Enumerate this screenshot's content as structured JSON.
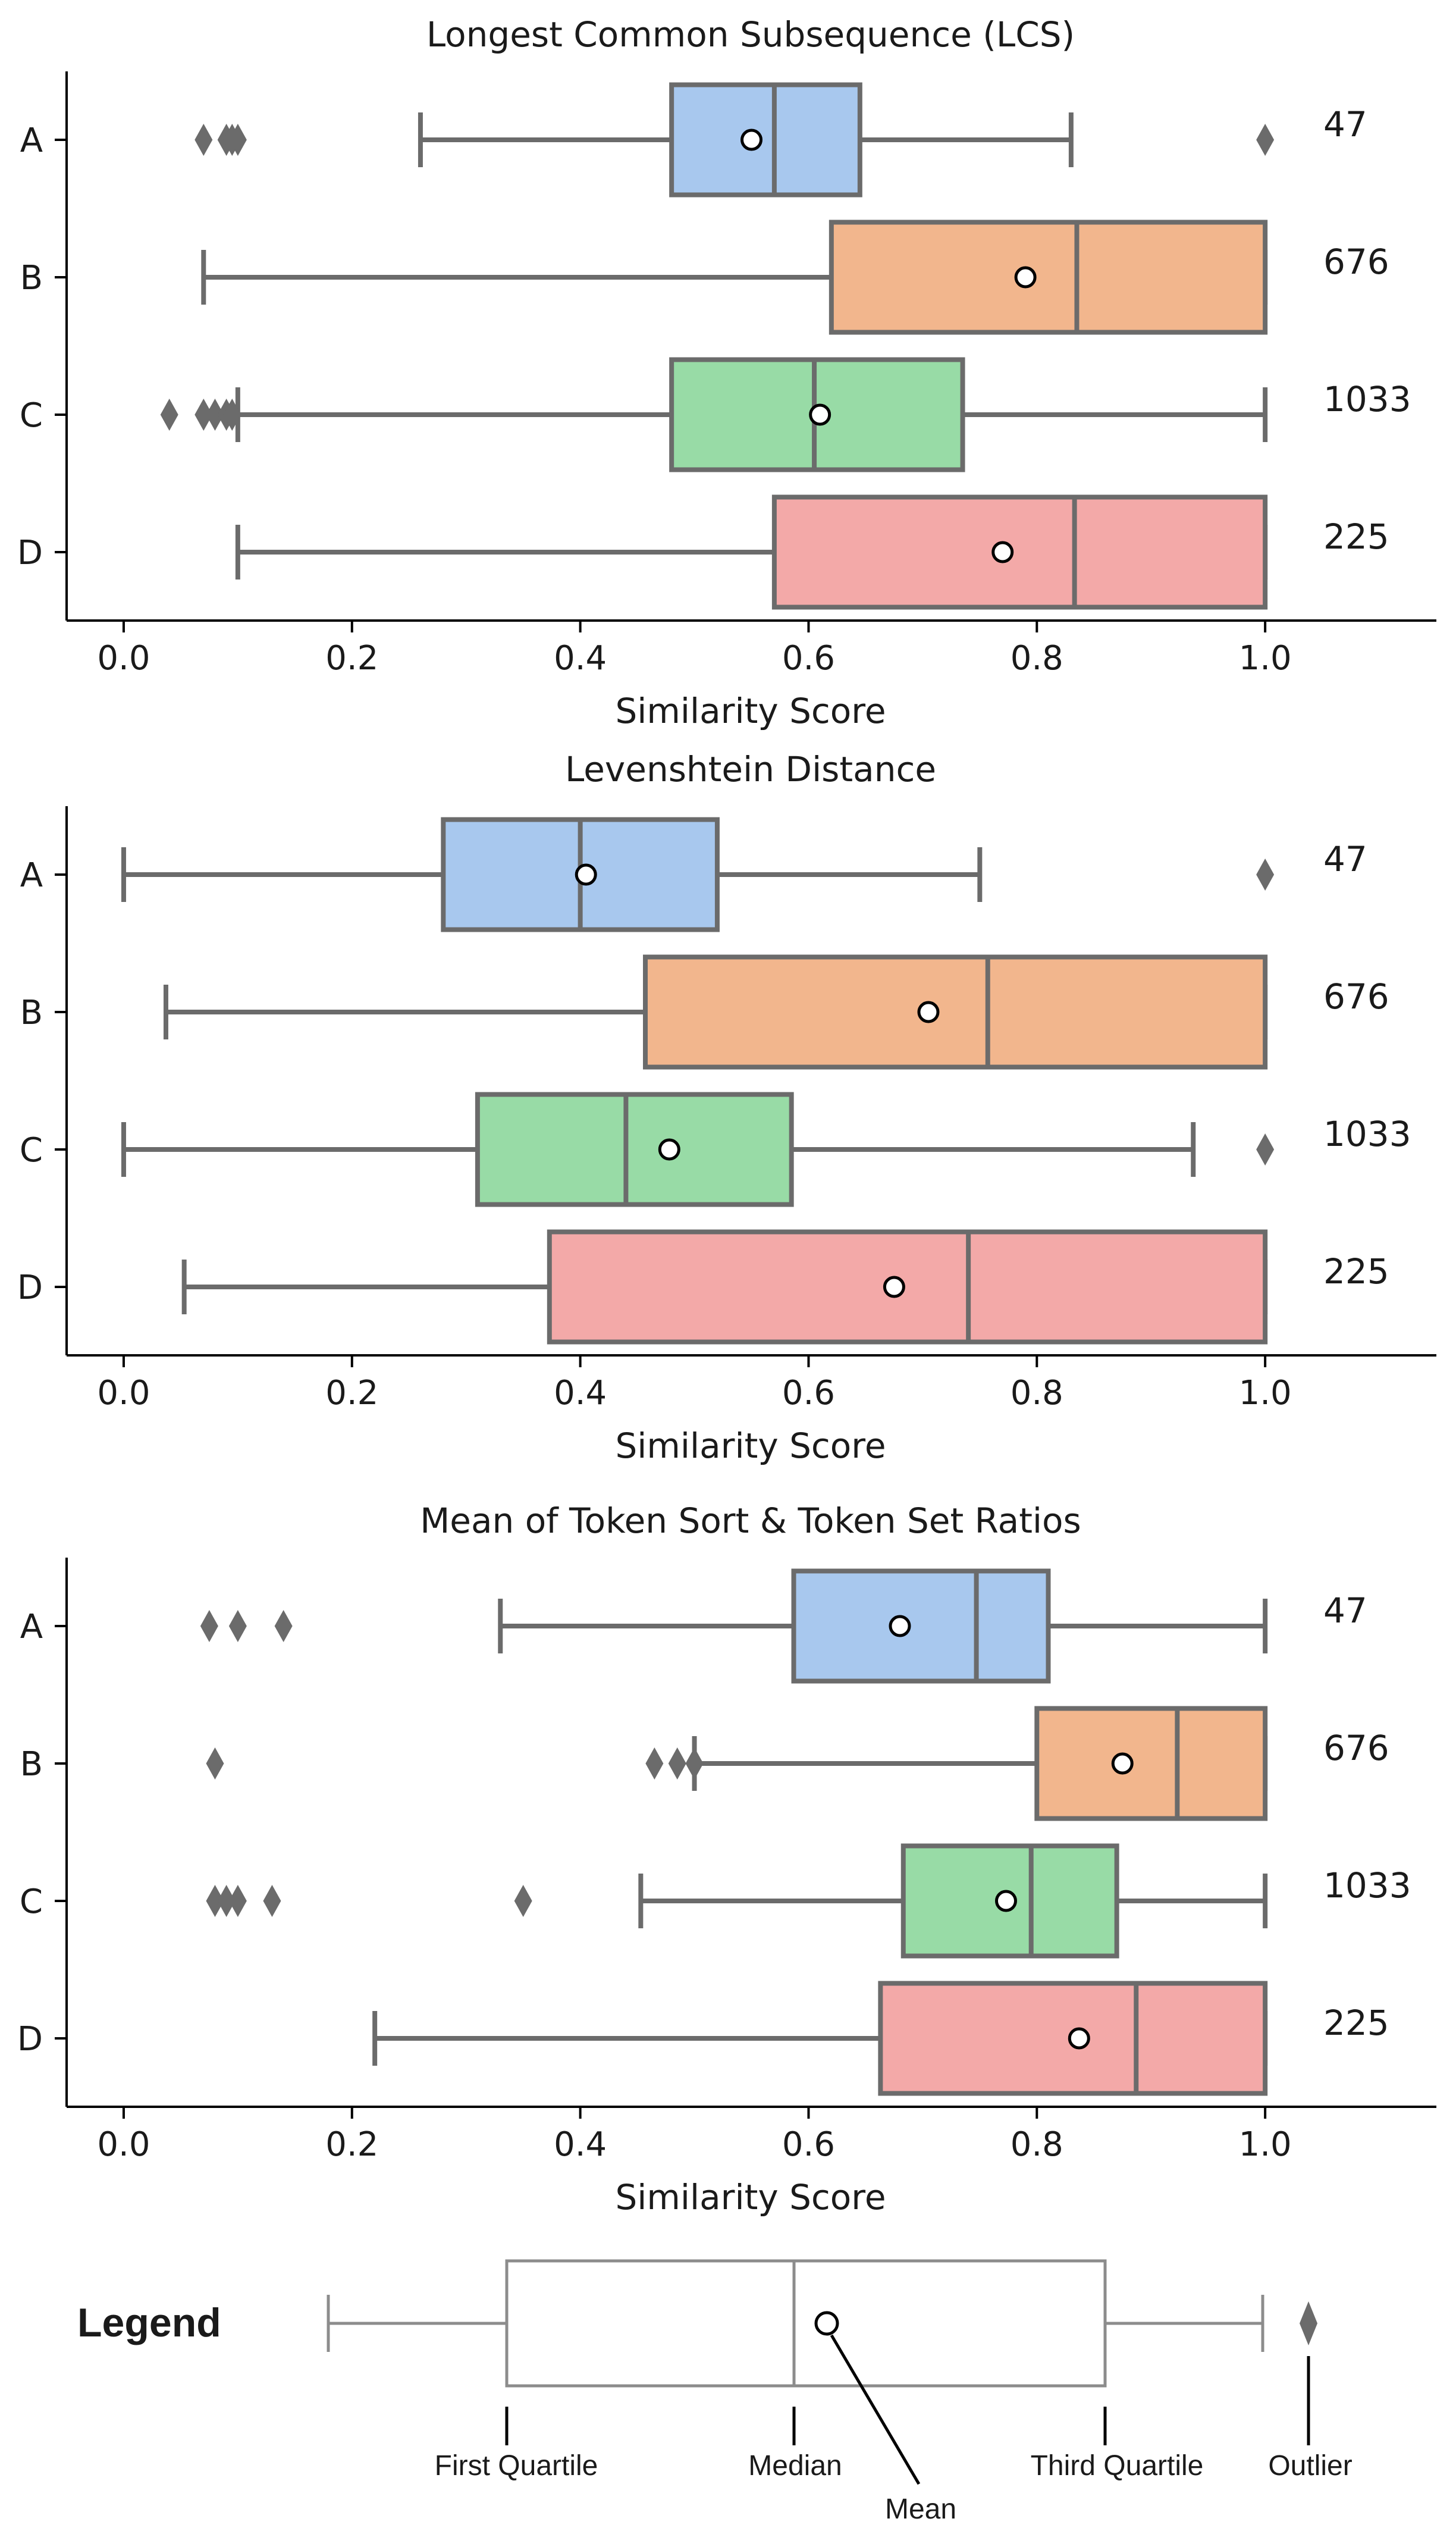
{
  "chart_data": [
    {
      "type": "boxplot",
      "title": "Longest Common Subsequence (LCS)",
      "xlabel": "Similarity Score",
      "ylabel": "",
      "xlim": [
        -0.05,
        1.15
      ],
      "xticks": [
        0.0,
        0.2,
        0.4,
        0.6,
        0.8,
        1.0
      ],
      "xtick_labels": [
        "0.0",
        "0.2",
        "0.4",
        "0.6",
        "0.8",
        "1.0"
      ],
      "grid": false,
      "groups": [
        {
          "label": "A",
          "count": "47",
          "color": "#a8c8ee",
          "whisker_low": 0.26,
          "q1": 0.48,
          "median": 0.57,
          "q3": 0.645,
          "whisker_high": 0.83,
          "mean": 0.55,
          "outliers": [
            0.07,
            0.09,
            0.095,
            0.1,
            1.0
          ]
        },
        {
          "label": "B",
          "count": "676",
          "color": "#f2b68d",
          "whisker_low": 0.07,
          "q1": 0.62,
          "median": 0.835,
          "q3": 1.0,
          "whisker_high": 1.0,
          "mean": 0.79,
          "outliers": []
        },
        {
          "label": "C",
          "count": "1033",
          "color": "#98dba6",
          "whisker_low": 0.1,
          "q1": 0.48,
          "median": 0.605,
          "q3": 0.735,
          "whisker_high": 1.0,
          "mean": 0.61,
          "outliers": [
            0.04,
            0.07,
            0.08,
            0.09,
            0.095
          ]
        },
        {
          "label": "D",
          "count": "225",
          "color": "#f3a9a8",
          "whisker_low": 0.1,
          "q1": 0.57,
          "median": 0.833,
          "q3": 1.0,
          "whisker_high": 1.0,
          "mean": 0.77,
          "outliers": []
        }
      ]
    },
    {
      "type": "boxplot",
      "title": "Levenshtein Distance",
      "xlabel": "Similarity Score",
      "ylabel": "",
      "xlim": [
        -0.05,
        1.15
      ],
      "xticks": [
        0.0,
        0.2,
        0.4,
        0.6,
        0.8,
        1.0
      ],
      "xtick_labels": [
        "0.0",
        "0.2",
        "0.4",
        "0.6",
        "0.8",
        "1.0"
      ],
      "grid": false,
      "groups": [
        {
          "label": "A",
          "count": "47",
          "color": "#a8c8ee",
          "whisker_low": 0.0,
          "q1": 0.28,
          "median": 0.4,
          "q3": 0.52,
          "whisker_high": 0.75,
          "mean": 0.405,
          "outliers": [
            1.0
          ]
        },
        {
          "label": "B",
          "count": "676",
          "color": "#f2b68d",
          "whisker_low": 0.037,
          "q1": 0.457,
          "median": 0.757,
          "q3": 1.0,
          "whisker_high": 1.0,
          "mean": 0.705,
          "outliers": []
        },
        {
          "label": "C",
          "count": "1033",
          "color": "#98dba6",
          "whisker_low": 0.0,
          "q1": 0.31,
          "median": 0.44,
          "q3": 0.585,
          "whisker_high": 0.937,
          "mean": 0.478,
          "outliers": [
            1.0
          ]
        },
        {
          "label": "D",
          "count": "225",
          "color": "#f3a9a8",
          "whisker_low": 0.053,
          "q1": 0.373,
          "median": 0.74,
          "q3": 1.0,
          "whisker_high": 1.0,
          "mean": 0.675,
          "outliers": []
        }
      ]
    },
    {
      "type": "boxplot",
      "title": "Mean of Token Sort & Token Set Ratios",
      "xlabel": "Similarity Score",
      "ylabel": "",
      "xlim": [
        -0.05,
        1.15
      ],
      "xticks": [
        0.0,
        0.2,
        0.4,
        0.6,
        0.8,
        1.0
      ],
      "xtick_labels": [
        "0.0",
        "0.2",
        "0.4",
        "0.6",
        "0.8",
        "1.0"
      ],
      "grid": false,
      "groups": [
        {
          "label": "A",
          "count": "47",
          "color": "#a8c8ee",
          "whisker_low": 0.33,
          "q1": 0.587,
          "median": 0.747,
          "q3": 0.81,
          "whisker_high": 1.0,
          "mean": 0.68,
          "outliers": [
            0.075,
            0.1,
            0.14
          ]
        },
        {
          "label": "B",
          "count": "676",
          "color": "#f2b68d",
          "whisker_low": 0.5,
          "q1": 0.8,
          "median": 0.923,
          "q3": 1.0,
          "whisker_high": 1.0,
          "mean": 0.875,
          "outliers": [
            0.08,
            0.465,
            0.485,
            0.5
          ]
        },
        {
          "label": "C",
          "count": "1033",
          "color": "#98dba6",
          "whisker_low": 0.453,
          "q1": 0.683,
          "median": 0.795,
          "q3": 0.87,
          "whisker_high": 1.0,
          "mean": 0.773,
          "outliers": [
            0.08,
            0.09,
            0.1,
            0.13,
            0.35
          ]
        },
        {
          "label": "D",
          "count": "225",
          "color": "#f3a9a8",
          "whisker_low": 0.22,
          "q1": 0.663,
          "median": 0.887,
          "q3": 1.0,
          "whisker_high": 1.0,
          "mean": 0.837,
          "outliers": []
        }
      ]
    }
  ],
  "legend": {
    "title": "Legend",
    "first_quartile": "First Quartile",
    "median": "Median",
    "mean": "Mean",
    "third_quartile": "Third Quartile",
    "outlier": "Outlier"
  },
  "colors": {
    "line": "#6b6b6b",
    "text": "#1a1a1a",
    "legend_line": "#8c8c8c"
  }
}
